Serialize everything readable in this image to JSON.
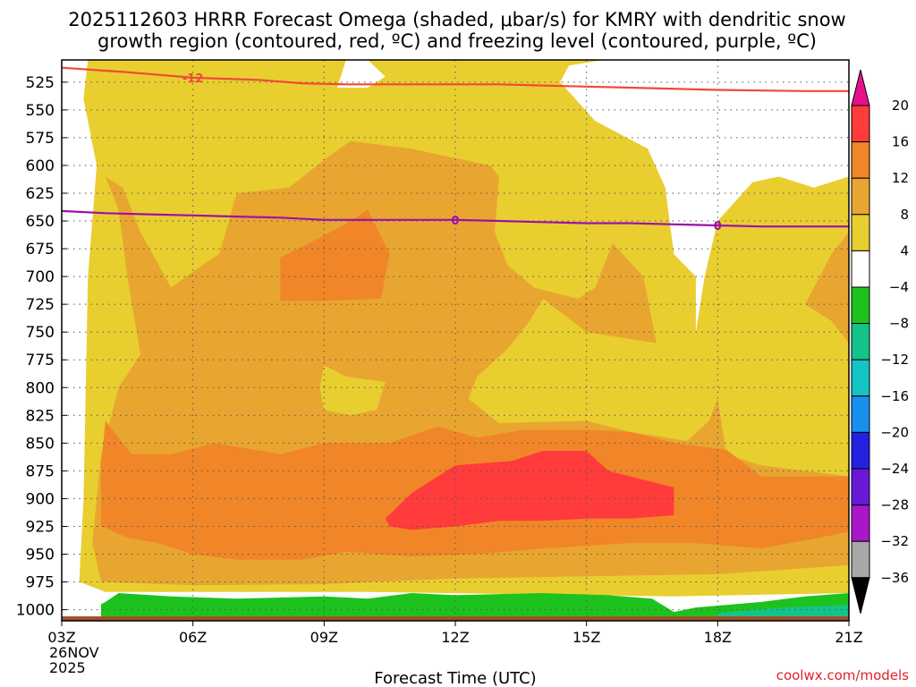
{
  "chart_data": {
    "type": "heatmap",
    "title_line1": "2025112603 HRRR Forecast Omega (shaded, μbar/s) for KMRY with dendritic snow",
    "title_line2": "growth region (contoured, red, ºC) and freezing level (contoured, purple, ºC)",
    "xlabel": "Forecast Time (UTC)",
    "x_ticks": [
      "03Z",
      "06Z",
      "09Z",
      "12Z",
      "15Z",
      "18Z",
      "21Z"
    ],
    "x_range_hours_utc": [
      3,
      21
    ],
    "start_date_line1": "26NOV",
    "start_date_line2": "2025",
    "y_ticks": [
      "525",
      "550",
      "575",
      "600",
      "625",
      "650",
      "675",
      "700",
      "725",
      "750",
      "775",
      "800",
      "825",
      "850",
      "875",
      "900",
      "925",
      "950",
      "975",
      "1000"
    ],
    "y_range_hpa": [
      505,
      1010
    ],
    "colorbar": {
      "labels": [
        "20",
        "16",
        "12",
        "8",
        "4",
        "−4",
        "−8",
        "−12",
        "−16",
        "−20",
        "−24",
        "−28",
        "−32",
        "−36"
      ],
      "colors": [
        "#ff3b3b",
        "#f08628",
        "#e8a630",
        "#e9ce30",
        "#ffffff",
        "#1ec21e",
        "#13c48a",
        "#14c4c4",
        "#1890f0",
        "#2222e0",
        "#6a18d8",
        "#a818c8",
        "#a8a8a8"
      ],
      "top_color": "#e8108a",
      "bottom_color": "#000000"
    },
    "omega_regions": [
      {
        "name": "omega-4-to-8",
        "level": 4,
        "color": "#e9ce30",
        "points": [
          [
            3.6,
            505
          ],
          [
            9.5,
            505
          ],
          [
            9.3,
            530
          ],
          [
            10.0,
            530
          ],
          [
            10.4,
            520
          ],
          [
            10.0,
            505
          ],
          [
            15.4,
            505
          ],
          [
            14.6,
            510
          ],
          [
            14.4,
            525
          ],
          [
            15.2,
            560
          ],
          [
            16.4,
            585
          ],
          [
            16.8,
            620
          ],
          [
            17.0,
            680
          ],
          [
            17.5,
            700
          ],
          [
            17.5,
            750
          ],
          [
            17.7,
            700
          ],
          [
            18.0,
            650
          ],
          [
            18.8,
            615
          ],
          [
            19.4,
            610
          ],
          [
            20.2,
            620
          ],
          [
            21.0,
            610
          ],
          [
            21.0,
            985
          ],
          [
            17.0,
            988
          ],
          [
            10.0,
            984
          ],
          [
            4.0,
            984
          ],
          [
            3.4,
            975
          ],
          [
            3.5,
            900
          ],
          [
            3.6,
            700
          ],
          [
            3.8,
            600
          ],
          [
            3.5,
            540
          ],
          [
            3.6,
            505
          ]
        ]
      },
      {
        "name": "omega-8-to-12",
        "level": 8,
        "color": "#e8a630",
        "points": [
          [
            4.0,
            610
          ],
          [
            4.3,
            640
          ],
          [
            4.5,
            700
          ],
          [
            4.8,
            770
          ],
          [
            4.3,
            800
          ],
          [
            3.9,
            860
          ],
          [
            3.7,
            940
          ],
          [
            3.9,
            975
          ],
          [
            6.0,
            978
          ],
          [
            9.0,
            977
          ],
          [
            12.0,
            972
          ],
          [
            15.0,
            970
          ],
          [
            18.0,
            968
          ],
          [
            21.0,
            960
          ],
          [
            21.0,
            880
          ],
          [
            19.0,
            870
          ],
          [
            18.2,
            860
          ],
          [
            18.0,
            810
          ],
          [
            17.8,
            830
          ],
          [
            17.3,
            848
          ],
          [
            16.0,
            840
          ],
          [
            15.0,
            830
          ],
          [
            13.0,
            832
          ],
          [
            12.3,
            810
          ],
          [
            12.5,
            790
          ],
          [
            13.2,
            765
          ],
          [
            13.7,
            740
          ],
          [
            14.0,
            720
          ],
          [
            15.0,
            750
          ],
          [
            16.6,
            760
          ],
          [
            16.3,
            700
          ],
          [
            15.6,
            670
          ],
          [
            15.2,
            710
          ],
          [
            14.8,
            720
          ],
          [
            13.8,
            710
          ],
          [
            13.2,
            690
          ],
          [
            12.9,
            660
          ],
          [
            13.0,
            610
          ],
          [
            12.8,
            600
          ],
          [
            11.0,
            585
          ],
          [
            9.6,
            578
          ],
          [
            9.0,
            595
          ],
          [
            8.2,
            620
          ],
          [
            7.0,
            625
          ],
          [
            6.6,
            680
          ],
          [
            6.2,
            690
          ],
          [
            5.5,
            710
          ],
          [
            4.8,
            660
          ],
          [
            4.4,
            620
          ],
          [
            4.0,
            610
          ]
        ]
      },
      {
        "name": "omega-8-to-12-east",
        "level": 8,
        "color": "#e8a630",
        "points": [
          [
            21.0,
            660
          ],
          [
            20.6,
            680
          ],
          [
            20.0,
            725
          ],
          [
            20.6,
            740
          ],
          [
            21.0,
            760
          ]
        ]
      },
      {
        "name": "omega-4-to-8-hole-0920",
        "level": 4,
        "color": "#e9ce30",
        "points": [
          [
            9.0,
            780
          ],
          [
            9.5,
            790
          ],
          [
            10.4,
            795
          ],
          [
            10.2,
            820
          ],
          [
            9.6,
            825
          ],
          [
            9.0,
            820
          ],
          [
            8.9,
            800
          ],
          [
            9.0,
            780
          ]
        ]
      },
      {
        "name": "omega-12-to-16",
        "level": 12,
        "color": "#f08628",
        "points": [
          [
            4.0,
            830
          ],
          [
            4.6,
            860
          ],
          [
            5.5,
            860
          ],
          [
            6.5,
            850
          ],
          [
            8.0,
            860
          ],
          [
            9.0,
            850
          ],
          [
            10.5,
            850
          ],
          [
            11.6,
            835
          ],
          [
            12.5,
            845
          ],
          [
            13.6,
            838
          ],
          [
            15.0,
            838
          ],
          [
            16.0,
            840
          ],
          [
            17.0,
            850
          ],
          [
            18.2,
            856
          ],
          [
            19.0,
            880
          ],
          [
            21.0,
            880
          ],
          [
            21.0,
            930
          ],
          [
            19.0,
            945
          ],
          [
            17.5,
            940
          ],
          [
            16.0,
            940
          ],
          [
            14.0,
            945
          ],
          [
            12.5,
            950
          ],
          [
            11.0,
            952
          ],
          [
            9.5,
            948
          ],
          [
            8.5,
            955
          ],
          [
            7.0,
            955
          ],
          [
            6.0,
            950
          ],
          [
            5.2,
            940
          ],
          [
            4.5,
            935
          ],
          [
            3.9,
            925
          ],
          [
            3.9,
            870
          ],
          [
            4.0,
            830
          ]
        ]
      },
      {
        "name": "omega-12-to-16-upper",
        "level": 12,
        "color": "#f08628",
        "points": [
          [
            8.0,
            683
          ],
          [
            9.4,
            655
          ],
          [
            10.0,
            640
          ],
          [
            10.5,
            680
          ],
          [
            10.3,
            720
          ],
          [
            9.0,
            722
          ],
          [
            8.0,
            722
          ],
          [
            8.0,
            683
          ]
        ]
      },
      {
        "name": "omega-16-to-20",
        "level": 16,
        "color": "#ff3b3b",
        "points": [
          [
            10.4,
            918
          ],
          [
            11.0,
            895
          ],
          [
            12.0,
            870
          ],
          [
            13.3,
            866
          ],
          [
            14.0,
            857
          ],
          [
            15.0,
            857
          ],
          [
            15.5,
            875
          ],
          [
            16.5,
            885
          ],
          [
            17.0,
            890
          ],
          [
            17.0,
            915
          ],
          [
            16.0,
            918
          ],
          [
            15.0,
            918
          ],
          [
            14.0,
            920
          ],
          [
            13.0,
            920
          ],
          [
            12.0,
            925
          ],
          [
            11.0,
            928
          ],
          [
            10.5,
            925
          ],
          [
            10.4,
            918
          ]
        ]
      },
      {
        "name": "omega-neg4-to-neg8",
        "level": -4,
        "color": "#1ec21e",
        "points": [
          [
            4.0,
            993
          ],
          [
            4.3,
            985
          ],
          [
            5.5,
            988
          ],
          [
            7.0,
            990
          ],
          [
            9.0,
            988
          ],
          [
            10.0,
            990
          ],
          [
            11.0,
            985
          ],
          [
            12.0,
            987
          ],
          [
            14.0,
            985
          ],
          [
            15.5,
            987
          ],
          [
            16.5,
            990
          ],
          [
            17.0,
            1002
          ],
          [
            17.5,
            998
          ],
          [
            19.0,
            993
          ],
          [
            20.0,
            988
          ],
          [
            21.0,
            985
          ],
          [
            21.0,
            1010
          ],
          [
            3.9,
            1010
          ],
          [
            3.9,
            995
          ],
          [
            4.0,
            993
          ]
        ]
      },
      {
        "name": "omega-neg8-to-neg12",
        "level": -8,
        "color": "#13c48a",
        "points": [
          [
            18.0,
            1003
          ],
          [
            19.5,
            998
          ],
          [
            21.0,
            996
          ],
          [
            21.0,
            1006
          ],
          [
            18.0,
            1006
          ]
        ]
      }
    ],
    "dendritic_contour": {
      "label": "-12",
      "color": "#ef4a3a",
      "points": [
        [
          3.0,
          512
        ],
        [
          4.5,
          516
        ],
        [
          6.0,
          521
        ],
        [
          7.5,
          523
        ],
        [
          8.5,
          526
        ],
        [
          9.5,
          527
        ],
        [
          10.5,
          527
        ],
        [
          12.0,
          527
        ],
        [
          13.0,
          527
        ],
        [
          14.0,
          528
        ],
        [
          15.0,
          529
        ],
        [
          16.0,
          530
        ],
        [
          18.0,
          532
        ],
        [
          20.0,
          533
        ],
        [
          21.0,
          533
        ]
      ]
    },
    "freezing_contour": {
      "label": "0",
      "color": "#9c10a8",
      "points": [
        [
          3.0,
          641
        ],
        [
          4.0,
          643
        ],
        [
          5.0,
          644
        ],
        [
          6.0,
          645
        ],
        [
          7.0,
          646
        ],
        [
          8.0,
          647
        ],
        [
          9.0,
          649
        ],
        [
          10.0,
          649
        ],
        [
          12.0,
          649
        ],
        [
          13.0,
          650
        ],
        [
          14.0,
          651
        ],
        [
          15.0,
          652
        ],
        [
          16.0,
          652
        ],
        [
          17.0,
          653
        ],
        [
          18.0,
          654
        ],
        [
          19.0,
          655
        ],
        [
          21.0,
          655
        ]
      ]
    },
    "ground_color": "#a0502a",
    "credit": "coolwx.com/models"
  }
}
